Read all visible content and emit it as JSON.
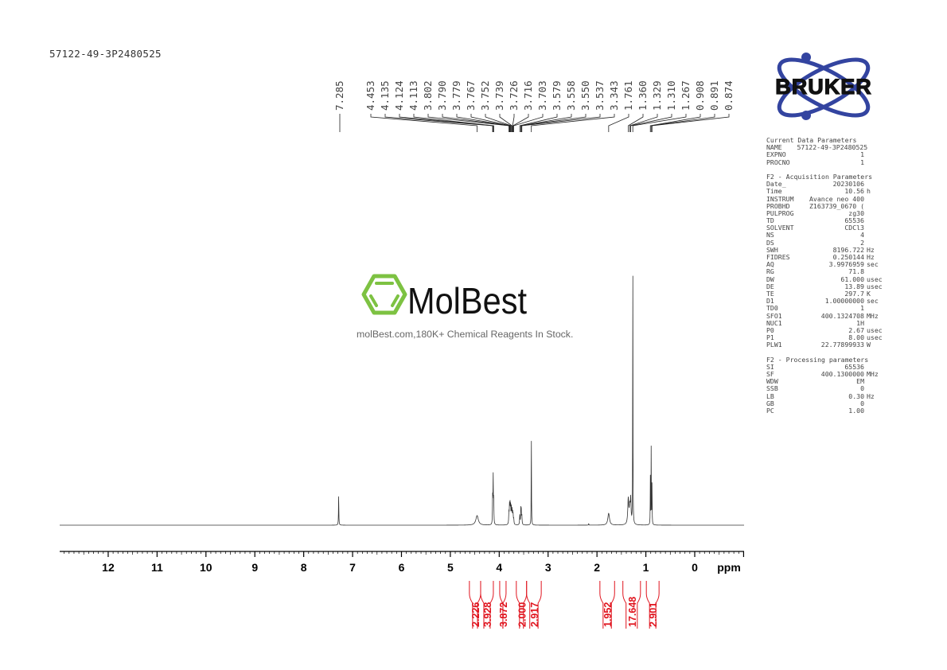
{
  "header": {
    "sample_name": "57122-49-3P2480525"
  },
  "logos": {
    "bruker": "BRUKER",
    "molbest": "MolBest",
    "molbest_tagline": "molBest.com,180K+ Chemical Reagents In Stock."
  },
  "colors": {
    "spectrum": "#333333",
    "integral": "#e0141e",
    "bruker_blue": "#3344a0",
    "molbest_green": "#7dc242"
  },
  "parameters": [
    {
      "header": "Current Data Parameters"
    },
    {
      "key": "NAME",
      "value": "57122-49-3P2480525",
      "unit": ""
    },
    {
      "key": "EXPNO",
      "value": "1",
      "unit": ""
    },
    {
      "key": "PROCNO",
      "value": "1",
      "unit": ""
    },
    {
      "blank": true
    },
    {
      "header": "F2 - Acquisition Parameters"
    },
    {
      "key": "Date_",
      "value": "20230106",
      "unit": ""
    },
    {
      "key": "Time",
      "value": "10.56",
      "unit": "h"
    },
    {
      "key": "INSTRUM",
      "value": "Avance neo 400",
      "unit": ""
    },
    {
      "key": "PROBHD",
      "value": "Z163739_0670 (",
      "unit": ""
    },
    {
      "key": "PULPROG",
      "value": "zg30",
      "unit": ""
    },
    {
      "key": "TD",
      "value": "65536",
      "unit": ""
    },
    {
      "key": "SOLVENT",
      "value": "CDCl3",
      "unit": ""
    },
    {
      "key": "NS",
      "value": "4",
      "unit": ""
    },
    {
      "key": "DS",
      "value": "2",
      "unit": ""
    },
    {
      "key": "SWH",
      "value": "8196.722",
      "unit": "Hz"
    },
    {
      "key": "FIDRES",
      "value": "0.250144",
      "unit": "Hz"
    },
    {
      "key": "AQ",
      "value": "3.9976959",
      "unit": "sec"
    },
    {
      "key": "RG",
      "value": "71.8",
      "unit": ""
    },
    {
      "key": "DW",
      "value": "61.000",
      "unit": "usec"
    },
    {
      "key": "DE",
      "value": "13.89",
      "unit": "usec"
    },
    {
      "key": "TE",
      "value": "297.7",
      "unit": "K"
    },
    {
      "key": "D1",
      "value": "1.00000000",
      "unit": "sec"
    },
    {
      "key": "TD0",
      "value": "1",
      "unit": ""
    },
    {
      "key": "SFO1",
      "value": "400.1324708",
      "unit": "MHz"
    },
    {
      "key": "NUC1",
      "value": "1H",
      "unit": ""
    },
    {
      "key": "P0",
      "value": "2.67",
      "unit": "usec"
    },
    {
      "key": "P1",
      "value": "8.00",
      "unit": "usec"
    },
    {
      "key": "PLW1",
      "value": "22.77899933",
      "unit": "W"
    },
    {
      "blank": true
    },
    {
      "header": "F2 - Processing parameters"
    },
    {
      "key": "SI",
      "value": "65536",
      "unit": ""
    },
    {
      "key": "SF",
      "value": "400.1300000",
      "unit": "MHz"
    },
    {
      "key": "WDW",
      "value": "EM",
      "unit": ""
    },
    {
      "key": "SSB",
      "value": "0",
      "unit": ""
    },
    {
      "key": "LB",
      "value": "0.30",
      "unit": "Hz"
    },
    {
      "key": "GB",
      "value": "0",
      "unit": ""
    },
    {
      "key": "PC",
      "value": "1.00",
      "unit": ""
    }
  ],
  "chart_data": {
    "type": "line",
    "xlabel": "ppm",
    "xlim": [
      13.0,
      -1.0
    ],
    "x_reversed": true,
    "x_ticks": [
      "12",
      "11",
      "10",
      "9",
      "8",
      "7",
      "6",
      "5",
      "4",
      "3",
      "2",
      "1",
      "0"
    ],
    "grid": false,
    "peak_labels": [
      "7.285",
      "4.453",
      "4.135",
      "4.124",
      "4.113",
      "3.802",
      "3.790",
      "3.779",
      "3.767",
      "3.752",
      "3.739",
      "3.726",
      "3.716",
      "3.703",
      "3.579",
      "3.558",
      "3.550",
      "3.537",
      "3.343",
      "1.761",
      "1.360",
      "1.329",
      "1.310",
      "1.267",
      "0.908",
      "0.891",
      "0.874"
    ],
    "peaks": [
      {
        "ppm": 7.285,
        "intensity": 10.7,
        "width": 0.004
      },
      {
        "ppm": 4.453,
        "intensity": 3.4,
        "width": 0.03
      },
      {
        "ppm": 4.135,
        "intensity": 9.5,
        "width": 0.004
      },
      {
        "ppm": 4.124,
        "intensity": 17,
        "width": 0.004
      },
      {
        "ppm": 4.113,
        "intensity": 9.5,
        "width": 0.004
      },
      {
        "ppm": 3.802,
        "intensity": 4,
        "width": 0.005
      },
      {
        "ppm": 3.79,
        "intensity": 6,
        "width": 0.005
      },
      {
        "ppm": 3.779,
        "intensity": 7,
        "width": 0.005
      },
      {
        "ppm": 3.767,
        "intensity": 6.5,
        "width": 0.005
      },
      {
        "ppm": 3.752,
        "intensity": 5.5,
        "width": 0.005
      },
      {
        "ppm": 3.739,
        "intensity": 5,
        "width": 0.005
      },
      {
        "ppm": 3.726,
        "intensity": 4,
        "width": 0.005
      },
      {
        "ppm": 3.716,
        "intensity": 3,
        "width": 0.005
      },
      {
        "ppm": 3.703,
        "intensity": 2,
        "width": 0.005
      },
      {
        "ppm": 3.579,
        "intensity": 3.5,
        "width": 0.005
      },
      {
        "ppm": 3.558,
        "intensity": 5,
        "width": 0.005
      },
      {
        "ppm": 3.55,
        "intensity": 4.5,
        "width": 0.005
      },
      {
        "ppm": 3.537,
        "intensity": 3,
        "width": 0.005
      },
      {
        "ppm": 3.343,
        "intensity": 35,
        "width": 0.003
      },
      {
        "ppm": 2.17,
        "intensity": 0.6,
        "width": 0.004
      },
      {
        "ppm": 1.761,
        "intensity": 4.2,
        "width": 0.02
      },
      {
        "ppm": 1.36,
        "intensity": 9,
        "width": 0.012
      },
      {
        "ppm": 1.329,
        "intensity": 6,
        "width": 0.012
      },
      {
        "ppm": 1.31,
        "intensity": 8,
        "width": 0.008
      },
      {
        "ppm": 1.267,
        "intensity": 100,
        "width": 0.003
      },
      {
        "ppm": 0.908,
        "intensity": 17,
        "width": 0.003
      },
      {
        "ppm": 0.891,
        "intensity": 27.6,
        "width": 0.003
      },
      {
        "ppm": 0.874,
        "intensity": 16,
        "width": 0.003
      }
    ],
    "integrals": [
      {
        "from": 4.61,
        "to": 4.38,
        "value": "2.226"
      },
      {
        "from": 4.38,
        "to": 4.12,
        "value": "3.928"
      },
      {
        "from": 3.99,
        "to": 3.86,
        "value": "3.872"
      },
      {
        "from": 3.65,
        "to": 3.44,
        "value": "2.000"
      },
      {
        "from": 3.44,
        "to": 3.14,
        "value": "2.917"
      },
      {
        "from": 1.94,
        "to": 1.64,
        "value": "1.952"
      },
      {
        "from": 1.47,
        "to": 1.11,
        "value": "17.648"
      },
      {
        "from": 0.99,
        "to": 0.73,
        "value": "2.901"
      }
    ]
  }
}
